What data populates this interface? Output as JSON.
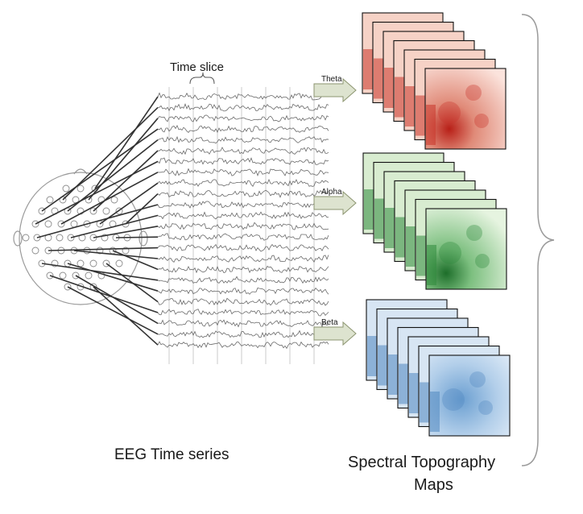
{
  "labels": {
    "time_slice": "Time slice",
    "eeg_series": "EEG Time series",
    "maps_line1": "Spectral Topography",
    "maps_line2": "Maps"
  },
  "bands": [
    {
      "name": "Theta",
      "color": "#c8342a",
      "light": "#f6d2c6"
    },
    {
      "name": "Alpha",
      "color": "#2f8a3c",
      "light": "#d8ecd0"
    },
    {
      "name": "Beta",
      "color": "#4f86c0",
      "light": "#d7e5f3"
    }
  ],
  "colors": {
    "arrow_fill": "#dde3cf",
    "arrow_stroke": "#8c9570",
    "trace": "#6a6a6a",
    "grid": "#b5b5b5"
  }
}
